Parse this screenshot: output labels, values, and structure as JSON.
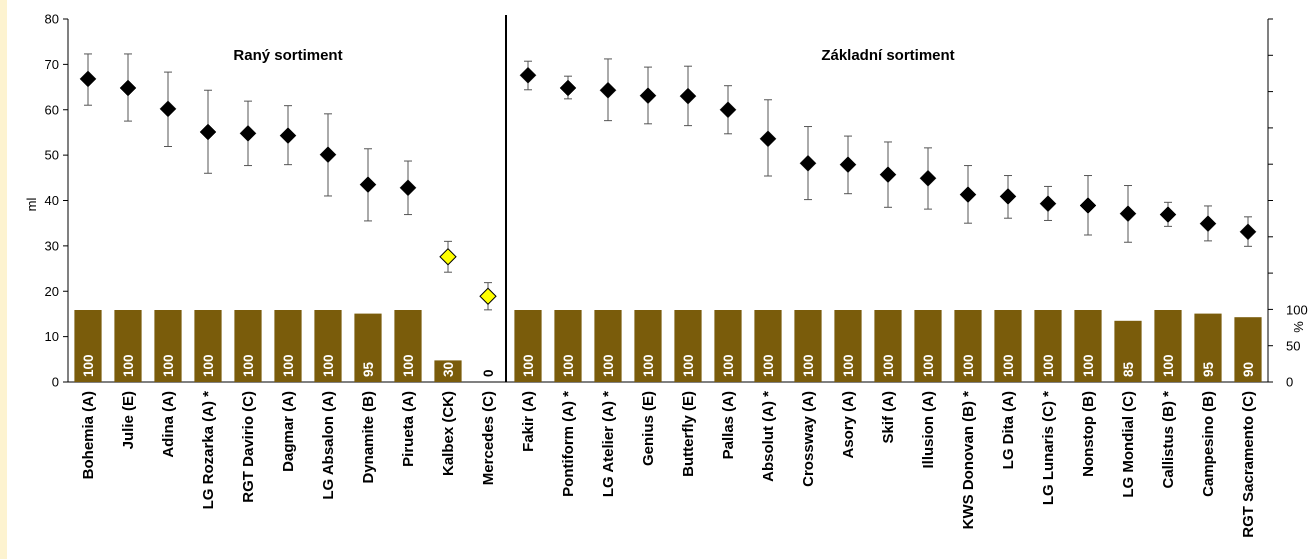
{
  "chart_data": {
    "type": "scatter",
    "ylabel": "ml",
    "ylim": [
      0,
      80
    ],
    "y_ticks": [
      "0",
      "10",
      "20",
      "30",
      "40",
      "50",
      "60",
      "70",
      "80"
    ],
    "y2label": "%",
    "y2_ticks": [
      "0",
      "50",
      "100"
    ],
    "y2lim": [
      0,
      100
    ],
    "sections": [
      {
        "label": "Raný sortiment",
        "start": 0,
        "end": 11
      },
      {
        "label": "Základní sortiment",
        "start": 11,
        "end": 30
      }
    ],
    "categories": [
      "Bohemia (A)",
      "Julie (E)",
      "Adina (A)",
      "LG Rozarka (A) *",
      "RGT Davirio (C)",
      "Dagmar (A)",
      "LG Absalon (A)",
      "Dynamite (B)",
      "Pirueta (A)",
      "Kalbex (CK)",
      "Mercedes (C)",
      "Fakir (A)",
      "Pontiform (A) *",
      "LG Atelier (A) *",
      "Genius (E)",
      "Butterfly (E)",
      "Pallas (A)",
      "Absolut (A) *",
      "Crossway (A)",
      "Asory (A)",
      "Skif (A)",
      "Illusion (A)",
      "KWS Donovan (B) *",
      "LG Dita (A)",
      "LG Lunaris (C) *",
      "Nonstop (B)",
      "LG Mondial (C)",
      "Callistus (B) *",
      "Campesino (B)",
      "RGT Sacramento (C)"
    ],
    "series": [
      {
        "type": "scatter",
        "values": [
          66.8,
          64.8,
          60.2,
          55.1,
          54.8,
          54.3,
          50.1,
          43.5,
          42.8,
          27.6,
          18.9,
          67.6,
          64.8,
          64.3,
          63.1,
          63.0,
          60.0,
          53.6,
          48.2,
          47.9,
          45.7,
          44.9,
          41.3,
          40.9,
          39.3,
          38.9,
          37.1,
          36.9,
          34.9,
          33.1
        ],
        "err_low": [
          61.0,
          57.5,
          51.9,
          46.0,
          47.7,
          47.9,
          41.0,
          35.5,
          36.9,
          24.2,
          15.9,
          64.4,
          62.4,
          57.6,
          56.9,
          56.5,
          54.7,
          45.4,
          40.2,
          41.5,
          38.5,
          38.1,
          35.0,
          36.1,
          35.6,
          32.4,
          30.8,
          34.3,
          31.1,
          29.9
        ],
        "err_high": [
          72.3,
          72.3,
          68.3,
          64.3,
          61.9,
          60.9,
          59.1,
          51.4,
          48.7,
          31.0,
          21.9,
          70.7,
          67.4,
          71.2,
          69.4,
          69.6,
          65.3,
          62.2,
          56.3,
          54.2,
          52.9,
          51.6,
          47.7,
          45.5,
          43.1,
          45.5,
          43.3,
          39.6,
          38.8,
          36.4
        ],
        "highlighted": [
          "Kalbex (CK)",
          "Mercedes (C)"
        ]
      },
      {
        "type": "bar",
        "values": [
          100,
          100,
          100,
          100,
          100,
          100,
          100,
          95,
          100,
          30,
          0,
          100,
          100,
          100,
          100,
          100,
          100,
          100,
          100,
          100,
          100,
          100,
          100,
          100,
          100,
          100,
          85,
          100,
          95,
          90
        ],
        "labels": [
          "100",
          "100",
          "100",
          "100",
          "100",
          "100",
          "100",
          "95",
          "100",
          "30",
          "0",
          "100",
          "100",
          "100",
          "100",
          "100",
          "100",
          "100",
          "100",
          "100",
          "100",
          "100",
          "100",
          "100",
          "100",
          "100",
          "85",
          "100",
          "95",
          "90"
        ]
      }
    ],
    "colors": {
      "bar": "#7a5c0b",
      "marker": "#000000",
      "highlight_marker": "#ffff00",
      "error_bar": "#555555",
      "divider": "#000000",
      "left_strip": "#fdf3d0"
    }
  }
}
